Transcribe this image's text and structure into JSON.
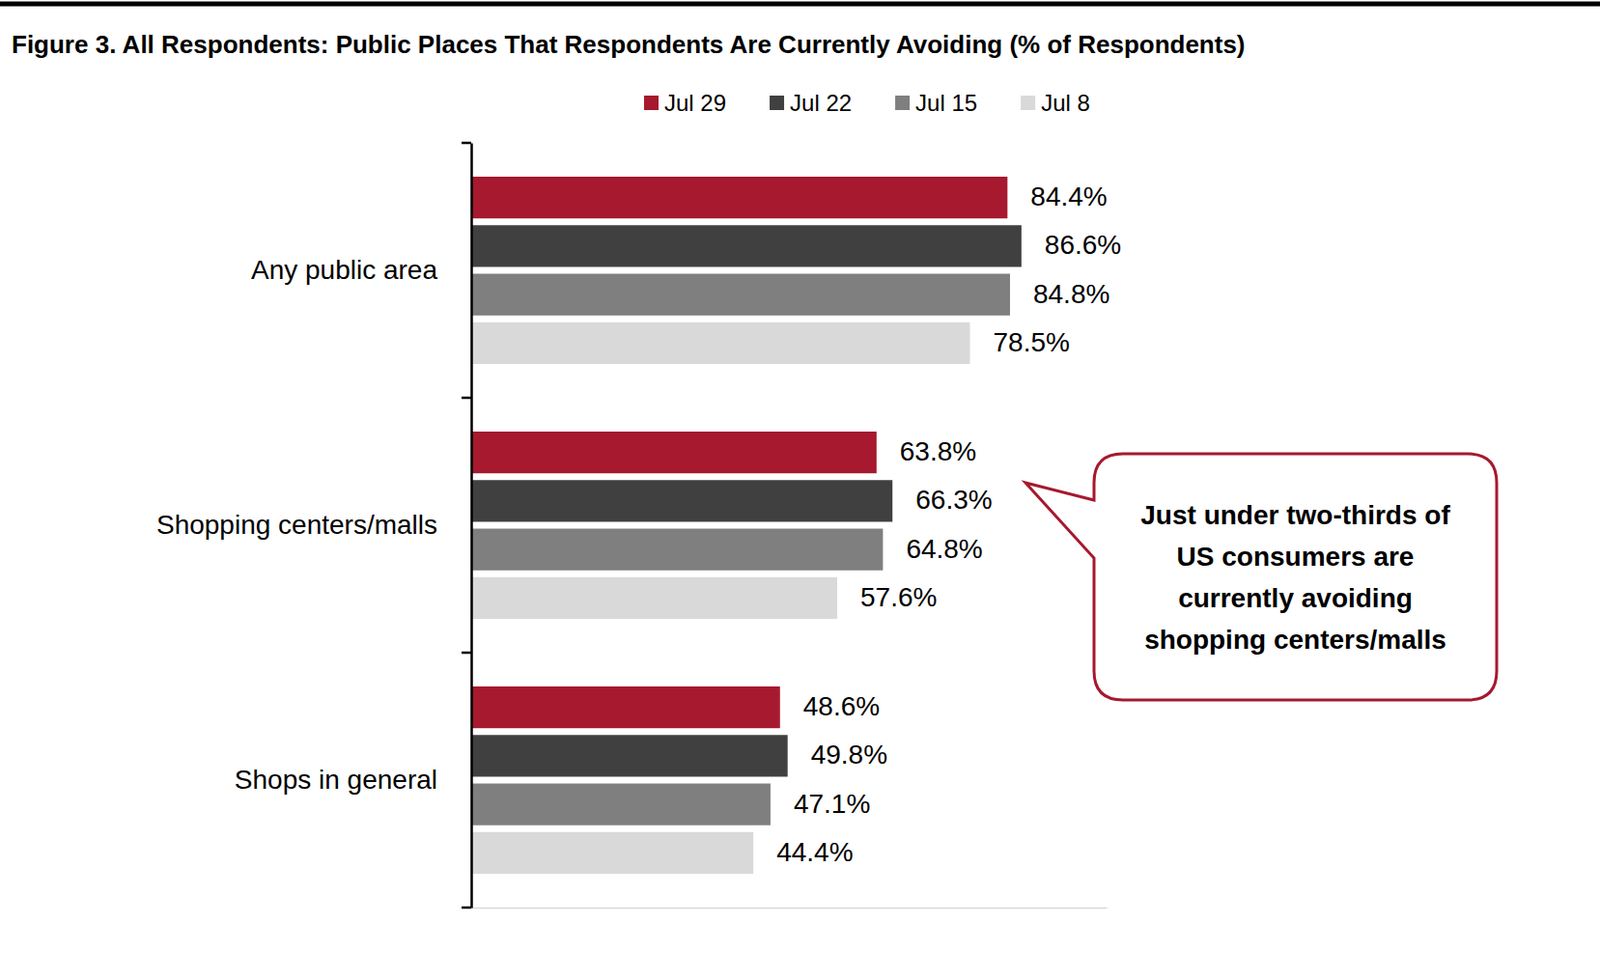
{
  "chart_data": {
    "type": "bar",
    "orientation": "horizontal",
    "title": "Figure 3. All Respondents: Public Places That Respondents Are Currently Avoiding (% of Respondents)",
    "categories": [
      "Any public area",
      "Shopping centers/malls",
      "Shops in general"
    ],
    "series": [
      {
        "name": "Jul 29",
        "color": "#a6192e",
        "values": [
          84.4,
          63.8,
          48.6
        ],
        "value_labels": [
          "84.4%",
          "63.8%",
          "48.6%"
        ]
      },
      {
        "name": "Jul 22",
        "color": "#404040",
        "values": [
          86.6,
          66.3,
          49.8
        ],
        "value_labels": [
          "86.6%",
          "66.3%",
          "49.8%"
        ]
      },
      {
        "name": "Jul 15",
        "color": "#7f7f7f",
        "values": [
          84.8,
          64.8,
          47.1
        ],
        "value_labels": [
          "84.8%",
          "64.8%",
          "47.1%"
        ]
      },
      {
        "name": "Jul 8",
        "color": "#d9d9d9",
        "values": [
          78.5,
          57.6,
          44.4
        ],
        "value_labels": [
          "78.5%",
          "57.6%",
          "44.4%"
        ]
      }
    ],
    "xlim": [
      0,
      100
    ],
    "xticks": [],
    "tick_labels": "y",
    "data_labels": true,
    "legend": "top",
    "grid": false,
    "annotation": "Just under two-thirds of US consumers are currently avoiding shopping centers/malls"
  }
}
